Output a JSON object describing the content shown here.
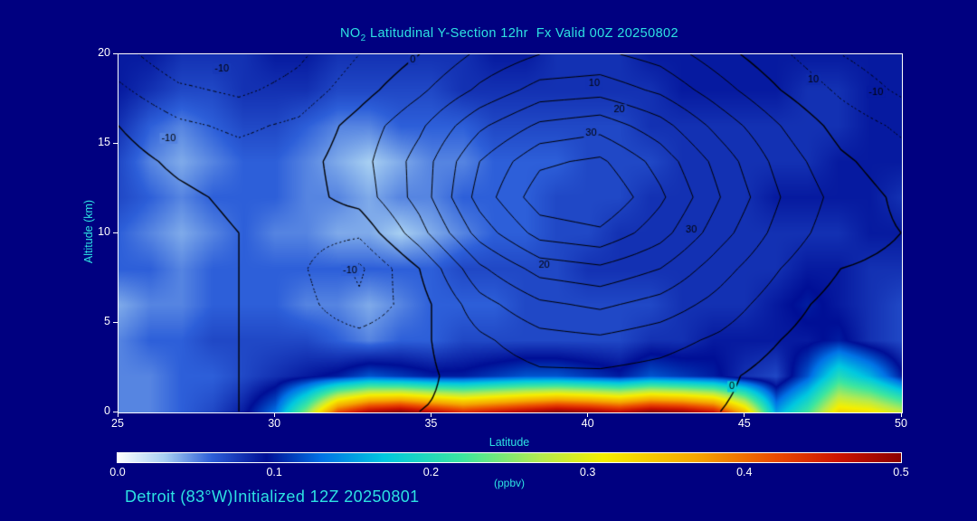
{
  "figure": {
    "title": {
      "prefix": "NO",
      "sub": "2",
      "rest": " Latitudinal Y-Section 12hr  Fx Valid 00Z 20250802"
    },
    "footer": "Detroit (83°W)Initialized 12Z 20250801",
    "colors": {
      "background": "#000080",
      "text_cyan": "#2de2e2",
      "text_white": "#ffffff",
      "frame": "#ffffff",
      "contour_line": "#000000"
    }
  },
  "chart_data": {
    "type": "heatmap",
    "title": "NO2 Latitudinal Y-Section 12hr Fx Valid 00Z 20250802",
    "xlabel": "Latitude",
    "ylabel": "Altitude (km)",
    "x_range": [
      25,
      50
    ],
    "y_range": [
      0,
      20
    ],
    "x_ticks": [
      25,
      30,
      35,
      40,
      45,
      50
    ],
    "y_ticks": [
      0,
      5,
      10,
      15,
      20
    ],
    "grid": false,
    "colorbar": {
      "label": "(ppbv)",
      "ticks": [
        "0.0",
        "0.1",
        "0.2",
        "0.3",
        "0.4",
        "0.5"
      ],
      "min": 0.0,
      "max": 0.5,
      "colormap": [
        [
          0.0,
          "#ffffff"
        ],
        [
          0.03,
          "#a8d0f2"
        ],
        [
          0.06,
          "#2d5fd9"
        ],
        [
          0.095,
          "#000f96"
        ],
        [
          0.13,
          "#0073e6"
        ],
        [
          0.17,
          "#00c8e0"
        ],
        [
          0.22,
          "#3ce6a0"
        ],
        [
          0.27,
          "#b4eb50"
        ],
        [
          0.31,
          "#f5ef00"
        ],
        [
          0.37,
          "#f5a500"
        ],
        [
          0.42,
          "#eb4b00"
        ],
        [
          0.46,
          "#cd1400"
        ],
        [
          0.5,
          "#8c0000"
        ]
      ]
    },
    "fill_field": {
      "units": "ppbv",
      "x0": 25,
      "dx": 1,
      "y0": 0,
      "dy": 2,
      "values": [
        [
          0.05,
          0.05,
          0.06,
          0.07,
          0.09,
          0.13,
          0.25,
          0.42,
          0.48,
          0.5,
          0.47,
          0.44,
          0.46,
          0.48,
          0.5,
          0.49,
          0.47,
          0.5,
          0.49,
          0.46,
          0.35,
          0.15,
          0.22,
          0.33,
          0.32,
          0.28
        ],
        [
          0.05,
          0.05,
          0.06,
          0.06,
          0.07,
          0.08,
          0.09,
          0.1,
          0.12,
          0.11,
          0.1,
          0.1,
          0.11,
          0.12,
          0.12,
          0.11,
          0.1,
          0.12,
          0.11,
          0.1,
          0.08,
          0.07,
          0.12,
          0.2,
          0.16,
          0.1
        ],
        [
          0.05,
          0.06,
          0.06,
          0.07,
          0.07,
          0.07,
          0.07,
          0.06,
          0.05,
          0.06,
          0.06,
          0.07,
          0.07,
          0.07,
          0.07,
          0.07,
          0.07,
          0.08,
          0.08,
          0.09,
          0.09,
          0.09,
          0.09,
          0.1,
          0.08,
          0.07
        ],
        [
          0.04,
          0.05,
          0.05,
          0.06,
          0.06,
          0.06,
          0.05,
          0.05,
          0.04,
          0.05,
          0.06,
          0.06,
          0.06,
          0.07,
          0.07,
          0.07,
          0.07,
          0.07,
          0.08,
          0.08,
          0.08,
          0.09,
          0.1,
          0.09,
          0.08,
          0.07
        ],
        [
          0.06,
          0.06,
          0.05,
          0.06,
          0.06,
          0.06,
          0.06,
          0.06,
          0.06,
          0.06,
          0.06,
          0.07,
          0.07,
          0.07,
          0.07,
          0.08,
          0.08,
          0.08,
          0.08,
          0.08,
          0.08,
          0.08,
          0.09,
          0.09,
          0.08,
          0.08
        ],
        [
          0.06,
          0.05,
          0.04,
          0.05,
          0.06,
          0.05,
          0.05,
          0.04,
          0.04,
          0.03,
          0.04,
          0.05,
          0.06,
          0.06,
          0.07,
          0.07,
          0.08,
          0.08,
          0.08,
          0.08,
          0.08,
          0.08,
          0.08,
          0.08,
          0.09,
          0.09
        ],
        [
          0.07,
          0.06,
          0.05,
          0.06,
          0.06,
          0.06,
          0.05,
          0.05,
          0.04,
          0.05,
          0.05,
          0.06,
          0.06,
          0.06,
          0.07,
          0.07,
          0.07,
          0.08,
          0.08,
          0.08,
          0.08,
          0.09,
          0.09,
          0.09,
          0.09,
          0.08
        ],
        [
          0.07,
          0.05,
          0.04,
          0.05,
          0.06,
          0.06,
          0.05,
          0.04,
          0.03,
          0.04,
          0.05,
          0.05,
          0.06,
          0.06,
          0.06,
          0.07,
          0.07,
          0.07,
          0.08,
          0.08,
          0.08,
          0.08,
          0.08,
          0.09,
          0.09,
          0.09
        ],
        [
          0.08,
          0.06,
          0.05,
          0.06,
          0.07,
          0.07,
          0.06,
          0.05,
          0.05,
          0.06,
          0.06,
          0.06,
          0.07,
          0.07,
          0.07,
          0.07,
          0.07,
          0.08,
          0.08,
          0.08,
          0.08,
          0.08,
          0.08,
          0.08,
          0.09,
          0.09
        ],
        [
          0.09,
          0.08,
          0.07,
          0.07,
          0.08,
          0.08,
          0.08,
          0.07,
          0.07,
          0.07,
          0.07,
          0.08,
          0.08,
          0.08,
          0.08,
          0.08,
          0.08,
          0.08,
          0.09,
          0.09,
          0.09,
          0.09,
          0.08,
          0.08,
          0.09,
          0.09
        ],
        [
          0.09,
          0.09,
          0.08,
          0.08,
          0.08,
          0.09,
          0.09,
          0.08,
          0.08,
          0.08,
          0.08,
          0.08,
          0.09,
          0.09,
          0.08,
          0.08,
          0.08,
          0.09,
          0.09,
          0.09,
          0.09,
          0.09,
          0.09,
          0.09,
          0.09,
          0.09
        ]
      ]
    },
    "contour_field": {
      "x0": 25,
      "dx": 1.9231,
      "y0": 0,
      "dy": 2,
      "values": [
        [
          2,
          1,
          0,
          -1,
          -1,
          0,
          1,
          2,
          2,
          1,
          0,
          -2,
          -3,
          -1
        ],
        [
          2,
          1,
          0,
          -1,
          -2,
          -1,
          2,
          4,
          4,
          3,
          1,
          -2,
          -4,
          -2
        ],
        [
          3,
          2,
          0,
          -2,
          -3,
          -1,
          4,
          8,
          9,
          7,
          4,
          0,
          -3,
          -2
        ],
        [
          3,
          2,
          0,
          -3,
          -9,
          -2,
          8,
          14,
          16,
          13,
          8,
          2,
          -2,
          -2
        ],
        [
          4,
          2,
          0,
          -4,
          -11,
          0,
          14,
          22,
          24,
          20,
          12,
          5,
          0,
          -1
        ],
        [
          4,
          2,
          0,
          -3,
          -4,
          8,
          22,
          32,
          34,
          27,
          17,
          8,
          2,
          0
        ],
        [
          3,
          1,
          -1,
          -2,
          2,
          12,
          27,
          38,
          40,
          31,
          20,
          10,
          3,
          -1
        ],
        [
          2,
          -1,
          -3,
          -2,
          3,
          12,
          25,
          34,
          36,
          28,
          18,
          8,
          1,
          -3
        ],
        [
          0,
          -4,
          -6,
          -4,
          2,
          9,
          19,
          26,
          28,
          22,
          13,
          5,
          -2,
          -6
        ],
        [
          -4,
          -9,
          -11,
          -8,
          -2,
          4,
          11,
          17,
          18,
          14,
          7,
          0,
          -6,
          -11
        ],
        [
          -8,
          -14,
          -15,
          -11,
          -5,
          0,
          6,
          10,
          11,
          8,
          2,
          -4,
          -10,
          -14
        ]
      ]
    },
    "contour_levels": [
      -15,
      -10,
      -5,
      0,
      5,
      10,
      15,
      20,
      25,
      30,
      35
    ],
    "contour_labels": [
      {
        "v": -10,
        "lat": 28.3,
        "alt": 19.2
      },
      {
        "v": -10,
        "lat": 26.6,
        "alt": 15.3
      },
      {
        "v": 0,
        "lat": 34.4,
        "alt": 19.7
      },
      {
        "v": 10,
        "lat": 40.2,
        "alt": 18.4
      },
      {
        "v": 20,
        "lat": 41.0,
        "alt": 16.9
      },
      {
        "v": 30,
        "lat": 40.1,
        "alt": 15.6
      },
      {
        "v": 10,
        "lat": 47.2,
        "alt": 18.6
      },
      {
        "v": -10,
        "lat": 49.2,
        "alt": 17.9
      },
      {
        "v": 30,
        "lat": 43.3,
        "alt": 10.2
      },
      {
        "v": 20,
        "lat": 38.6,
        "alt": 8.2
      },
      {
        "v": -10,
        "lat": 32.4,
        "alt": 7.9
      },
      {
        "v": 0,
        "lat": 44.6,
        "alt": 1.4
      }
    ]
  }
}
